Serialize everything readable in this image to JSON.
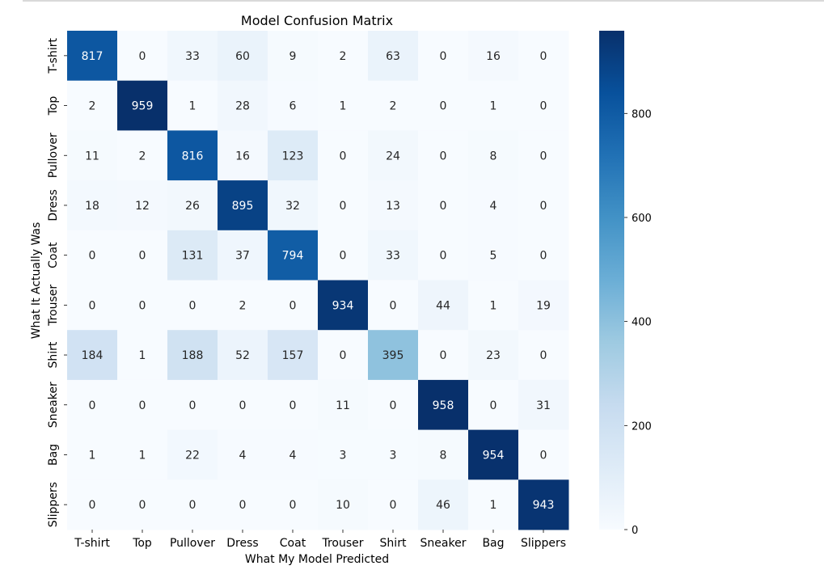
{
  "chart_data": {
    "type": "heatmap",
    "title": "Model Confusion Matrix",
    "xlabel": "What My Model Predicted",
    "ylabel": "What It Actually Was",
    "x_categories": [
      "T-shirt",
      "Top",
      "Pullover",
      "Dress",
      "Coat",
      "Trouser",
      "Shirt",
      "Sneaker",
      "Bag",
      "Slippers"
    ],
    "y_categories": [
      "T-shirt",
      "Top",
      "Pullover",
      "Dress",
      "Coat",
      "Trouser",
      "Shirt",
      "Sneaker",
      "Bag",
      "Slippers"
    ],
    "values": [
      [
        817,
        0,
        33,
        60,
        9,
        2,
        63,
        0,
        16,
        0
      ],
      [
        2,
        959,
        1,
        28,
        6,
        1,
        2,
        0,
        1,
        0
      ],
      [
        11,
        2,
        816,
        16,
        123,
        0,
        24,
        0,
        8,
        0
      ],
      [
        18,
        12,
        26,
        895,
        32,
        0,
        13,
        0,
        4,
        0
      ],
      [
        0,
        0,
        131,
        37,
        794,
        0,
        33,
        0,
        5,
        0
      ],
      [
        0,
        0,
        0,
        2,
        0,
        934,
        0,
        44,
        1,
        19
      ],
      [
        184,
        1,
        188,
        52,
        157,
        0,
        395,
        0,
        23,
        0
      ],
      [
        0,
        0,
        0,
        0,
        0,
        11,
        0,
        958,
        0,
        31
      ],
      [
        1,
        1,
        22,
        4,
        4,
        3,
        3,
        8,
        954,
        0
      ],
      [
        0,
        0,
        0,
        0,
        0,
        10,
        0,
        46,
        1,
        943
      ]
    ],
    "colormap": "Blues",
    "colorbar": {
      "range": [
        0,
        959
      ],
      "ticks": [
        0,
        200,
        400,
        600,
        800
      ],
      "tick_labels": [
        "0",
        "200",
        "400",
        "600",
        "800"
      ]
    },
    "annotations": true,
    "grid": false
  }
}
